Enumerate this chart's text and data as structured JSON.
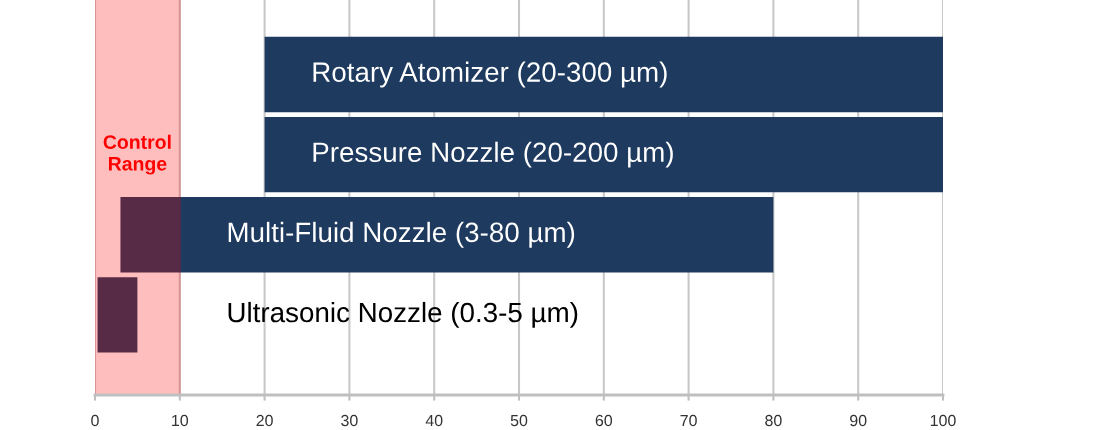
{
  "chart_data": {
    "type": "bar",
    "orientation": "horizontal",
    "categories": [
      "Rotary Atomizer (20-300 µm)",
      "Pressure Nozzle (20-200 µm)",
      "Multi-Fluid Nozzle (3-80 µm)",
      "Ultrasonic Nozzle (0.3-5 µm)"
    ],
    "base": [
      20,
      20,
      3,
      0.3
    ],
    "values": [
      80,
      80,
      77,
      4.7
    ],
    "color": "#1f3a5f",
    "xlim": [
      0,
      100
    ],
    "xticks": [
      0,
      10,
      20,
      30,
      40,
      50,
      60,
      70,
      80,
      90,
      100
    ],
    "grid": "x",
    "bands": [
      {
        "axis": "x",
        "from": 0,
        "to": 10,
        "label": "Control\nRange",
        "color": "#ff0000"
      }
    ]
  }
}
